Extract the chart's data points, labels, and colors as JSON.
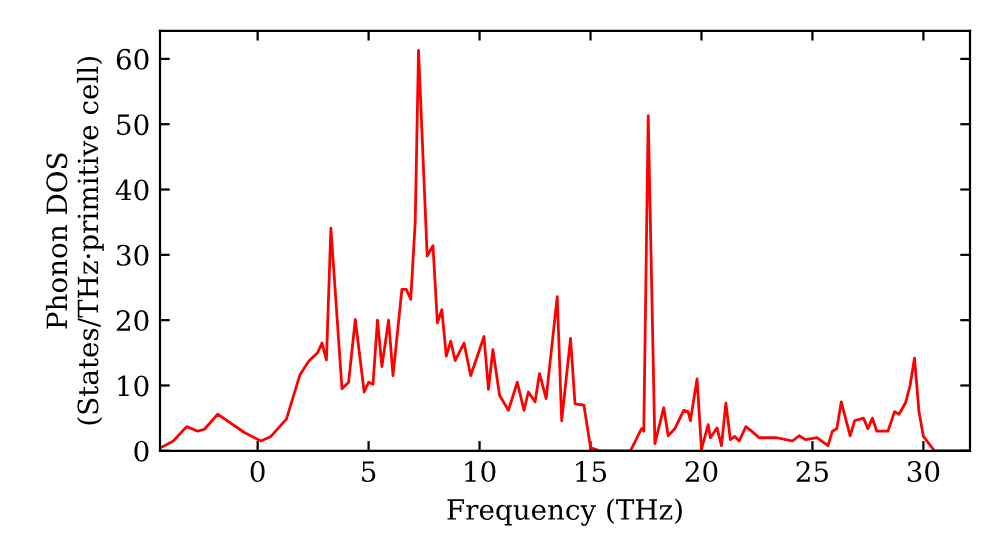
{
  "chart_data": {
    "type": "line",
    "xlabel": "Frequency (THz)",
    "ylabel": "Phonon DOS\n(States/THz·primitive cell)",
    "xlim": [
      -4.4,
      32.1
    ],
    "ylim": [
      0,
      64.3
    ],
    "xticks": [
      0,
      5,
      10,
      15,
      20,
      25,
      30
    ],
    "yticks": [
      0,
      10,
      20,
      30,
      40,
      50,
      60
    ],
    "grid": false,
    "legend": false,
    "series": [
      {
        "color": "#ff0000",
        "x": [
          -4.3,
          -3.8,
          -3.2,
          -2.7,
          -2.4,
          -1.8,
          -1.2,
          -0.6,
          0.15,
          0.6,
          1.3,
          1.9,
          2.3,
          2.7,
          2.9,
          3.1,
          3.3,
          3.8,
          4.1,
          4.4,
          4.8,
          5.0,
          5.2,
          5.4,
          5.6,
          5.9,
          6.1,
          6.5,
          6.7,
          6.9,
          7.1,
          7.25,
          7.64,
          7.9,
          8.1,
          8.3,
          8.5,
          8.7,
          8.9,
          9.3,
          9.6,
          10.2,
          10.4,
          10.6,
          10.9,
          11.3,
          11.7,
          12.0,
          12.2,
          12.5,
          12.7,
          13.0,
          13.5,
          13.7,
          14.1,
          14.3,
          14.7,
          15.0,
          15.4,
          16.8,
          17.3,
          17.4,
          17.6,
          17.9,
          18.3,
          18.5,
          18.8,
          19.2,
          19.4,
          19.5,
          19.8,
          20.0,
          20.3,
          20.4,
          20.7,
          20.9,
          21.1,
          21.3,
          21.5,
          21.7,
          22.0,
          22.3,
          22.6,
          23.4,
          23.8,
          24.1,
          24.4,
          24.7,
          25.2,
          25.7,
          25.9,
          26.1,
          26.3,
          26.7,
          26.9,
          27.3,
          27.5,
          27.7,
          27.9,
          28.4,
          28.7,
          28.9,
          29.2,
          29.4,
          29.6,
          29.8,
          30.0,
          30.5,
          32.0
        ],
        "values": [
          0.6,
          1.5,
          3.7,
          3.0,
          3.3,
          5.6,
          4.2,
          2.8,
          1.5,
          2.2,
          4.9,
          11.6,
          13.7,
          15.0,
          16.5,
          13.9,
          34.1,
          9.5,
          10.5,
          20.1,
          9.0,
          10.5,
          10.2,
          20.0,
          12.9,
          20.0,
          11.5,
          24.7,
          24.7,
          23.2,
          35.0,
          61.3,
          29.8,
          31.4,
          19.6,
          21.6,
          14.5,
          16.8,
          13.8,
          16.5,
          11.5,
          17.5,
          9.4,
          15.5,
          8.5,
          6.2,
          10.5,
          6.2,
          9.0,
          7.5,
          11.8,
          8.0,
          23.6,
          4.6,
          17.2,
          7.2,
          7.0,
          0.5,
          0,
          0,
          3.4,
          3.0,
          51.3,
          1.1,
          6.6,
          2.3,
          3.4,
          6.2,
          6.0,
          4.6,
          11.0,
          0.2,
          4.0,
          2.0,
          3.5,
          0.8,
          7.3,
          1.7,
          2.2,
          1.5,
          3.7,
          2.9,
          2.0,
          2.0,
          1.7,
          1.5,
          2.3,
          1.7,
          2.0,
          0.8,
          3.0,
          3.4,
          7.5,
          2.3,
          4.6,
          5.0,
          3.4,
          5.0,
          3.0,
          3.0,
          6.0,
          5.6,
          7.4,
          10.0,
          14.2,
          6.0,
          2.2,
          0,
          0
        ]
      }
    ]
  }
}
